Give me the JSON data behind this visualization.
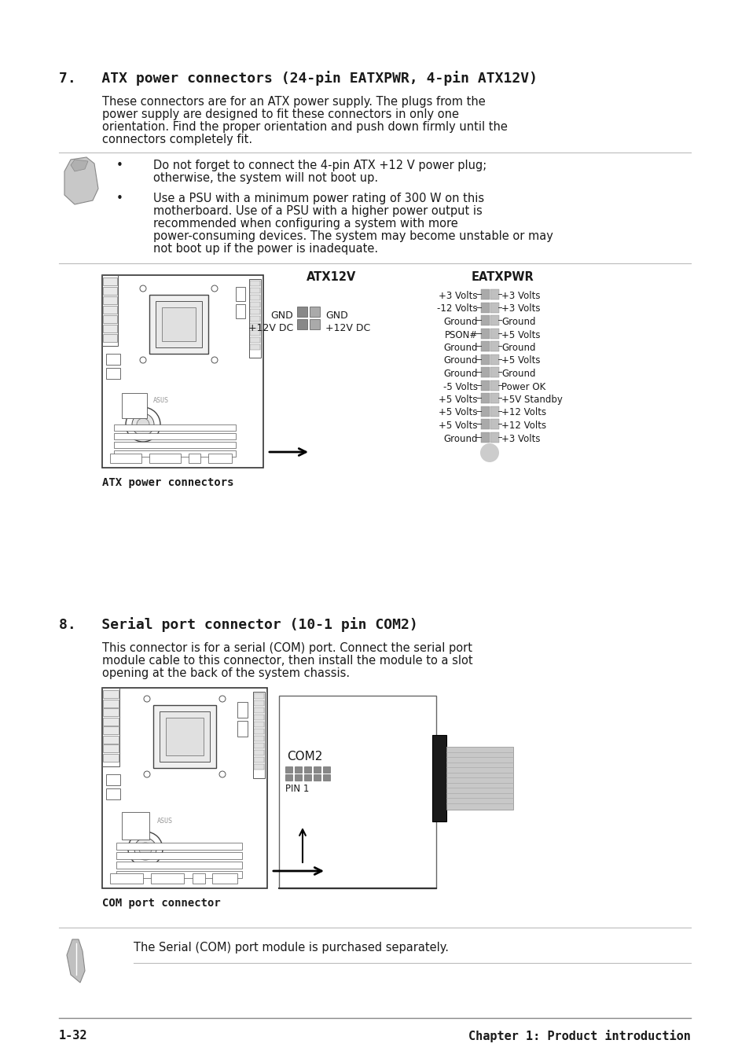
{
  "bg_color": "#ffffff",
  "section7_title": "7.   ATX power connectors (24-pin EATXPWR, 4-pin ATX12V)",
  "section7_body1": "These connectors are for an ATX power supply. The plugs from the",
  "section7_body2": "power supply are designed to fit these connectors in only one",
  "section7_body3": "orientation. Find the proper orientation and push down firmly until the",
  "section7_body4": "connectors completely fit.",
  "note1_bullet1_l1": "Do not forget to connect the 4-pin ATX +12 V power plug;",
  "note1_bullet1_l2": "otherwise, the system will not boot up.",
  "note1_bullet2_l1": "Use a PSU with a minimum power rating of 300 W on this",
  "note1_bullet2_l2": "motherboard. Use of a PSU with a higher power output is",
  "note1_bullet2_l3": "recommended when configuring a system with more",
  "note1_bullet2_l4": "power-consuming devices. The system may become unstable or may",
  "note1_bullet2_l5": "not boot up if the power is inadequate.",
  "atx12v_label": "ATX12V",
  "eatxpwr_label": "EATXPWR",
  "atx12v_gnd_l": "GND",
  "atx12v_gnd_r": "GND",
  "atx12v_v12_l": "+12V DC",
  "atx12v_v12_r": "+12V DC",
  "eatxpwr_left": [
    "+3 Volts",
    "-12 Volts",
    "Ground",
    "PSON#",
    "Ground",
    "Ground",
    "Ground",
    "-5 Volts",
    "+5 Volts",
    "+5 Volts",
    "+5 Volts",
    "Ground"
  ],
  "eatxpwr_right": [
    "+3 Volts",
    "+3 Volts",
    "Ground",
    "+5 Volts",
    "Ground",
    "+5 Volts",
    "Ground",
    "Power OK",
    "+5V Standby",
    "+12 Volts",
    "+12 Volts",
    "+3 Volts"
  ],
  "atx_caption": "ATX power connectors",
  "section8_title": "8.   Serial port connector (10-1 pin COM2)",
  "section8_body1": "This connector is for a serial (COM) port. Connect the serial port",
  "section8_body2": "module cable to this connector, then install the module to a slot",
  "section8_body3": "opening at the back of the system chassis.",
  "com2_label": "COM2",
  "pin1_label": "PIN 1",
  "com_caption": "COM port connector",
  "note2_text": "The Serial (COM) port module is purchased separately.",
  "footer_left": "1-32",
  "footer_right": "Chapter 1: Product introduction"
}
